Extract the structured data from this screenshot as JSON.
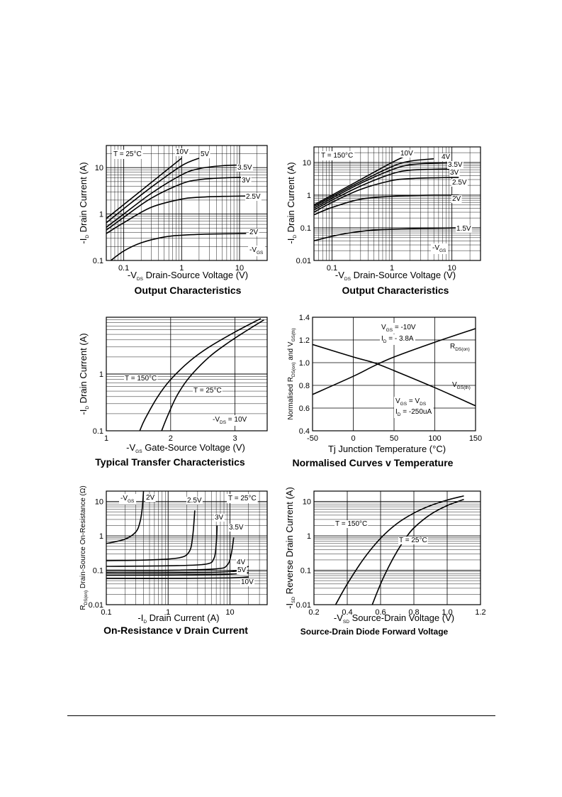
{
  "chart_data": [
    {
      "id": "c1",
      "type": "line",
      "title": "Output Characteristics",
      "xlabel": "Drain-Source Voltage (V)",
      "xlabel_prefix": {
        "main": "-V",
        "sub": "DS"
      },
      "ylabel": "Drain Current (A)",
      "ylabel_prefix": {
        "main": "-I",
        "sub": "D"
      },
      "x_scale": "log",
      "y_scale": "log",
      "xlim": [
        0.05,
        30
      ],
      "ylim": [
        0.1,
        30
      ],
      "x_ticks": [
        {
          "v": 0.1,
          "t": "0.1"
        },
        {
          "v": 1,
          "t": "1"
        },
        {
          "v": 10,
          "t": "10"
        }
      ],
      "y_ticks": [
        {
          "v": 0.1,
          "t": "0.1"
        },
        {
          "v": 1,
          "t": "1"
        },
        {
          "v": 10,
          "t": "10"
        }
      ],
      "condition": "T = 25°C",
      "param_label": {
        "main": "-V",
        "sub": "GS"
      },
      "series": [
        {
          "name": "10V",
          "x": [
            0.05,
            0.1,
            0.3,
            1.0
          ],
          "y": [
            0.8,
            1.6,
            4.8,
            16
          ]
        },
        {
          "name": "5V",
          "x": [
            0.05,
            0.1,
            0.3,
            1.0,
            2.0
          ],
          "y": [
            0.65,
            1.3,
            3.8,
            11,
            16
          ]
        },
        {
          "name": "3.5V",
          "x": [
            0.05,
            0.1,
            0.3,
            1.0,
            2.0,
            5.0,
            13
          ],
          "y": [
            0.52,
            1.0,
            2.8,
            7.0,
            9.5,
            11,
            11.5
          ]
        },
        {
          "name": "3V",
          "x": [
            0.05,
            0.1,
            0.3,
            1.0,
            2.0,
            5.0,
            13
          ],
          "y": [
            0.45,
            0.85,
            2.2,
            4.5,
            5.5,
            6.0,
            6.2
          ]
        },
        {
          "name": "2.5V",
          "x": [
            0.05,
            0.1,
            0.3,
            1.0,
            2.0,
            5.0,
            13
          ],
          "y": [
            0.38,
            0.65,
            1.4,
            2.1,
            2.3,
            2.4,
            2.45
          ]
        },
        {
          "name": "2V",
          "x": [
            0.06,
            0.1,
            0.2,
            0.5,
            1.0,
            3.0,
            13
          ],
          "y": [
            0.1,
            0.16,
            0.24,
            0.32,
            0.35,
            0.37,
            0.38
          ]
        }
      ]
    },
    {
      "id": "c2",
      "type": "line",
      "title": "Output Characteristics",
      "xlabel": "Drain-Source Voltage (V)",
      "xlabel_prefix": {
        "main": "-V",
        "sub": "DS"
      },
      "ylabel": "Drain Current (A)",
      "ylabel_prefix": {
        "main": "-I",
        "sub": "D"
      },
      "x_scale": "log",
      "y_scale": "log",
      "xlim": [
        0.05,
        30
      ],
      "ylim": [
        0.01,
        30
      ],
      "x_ticks": [
        {
          "v": 0.1,
          "t": "0.1"
        },
        {
          "v": 1,
          "t": "1"
        },
        {
          "v": 10,
          "t": "10"
        }
      ],
      "y_ticks": [
        {
          "v": 0.01,
          "t": "0.01"
        },
        {
          "v": 0.1,
          "t": "0.1"
        },
        {
          "v": 1,
          "t": "1"
        },
        {
          "v": 10,
          "t": "10"
        }
      ],
      "condition": "T = 150°C",
      "param_label": {
        "main": "-V",
        "sub": "GS"
      },
      "series": [
        {
          "name": "10V",
          "x": [
            0.05,
            0.1,
            0.3,
            1.0,
            1.7
          ],
          "y": [
            0.5,
            1.0,
            3.0,
            10,
            16
          ]
        },
        {
          "name": "4V",
          "x": [
            0.05,
            0.1,
            0.3,
            1.0,
            2.0,
            5.0
          ],
          "y": [
            0.45,
            0.9,
            2.6,
            7.5,
            11,
            13
          ]
        },
        {
          "name": "3.5V",
          "x": [
            0.05,
            0.1,
            0.3,
            1.0,
            2.0,
            5.0,
            13
          ],
          "y": [
            0.4,
            0.8,
            2.3,
            6.0,
            8.5,
            9.5,
            10
          ]
        },
        {
          "name": "3V",
          "x": [
            0.05,
            0.1,
            0.3,
            1.0,
            2.0,
            5.0,
            13
          ],
          "y": [
            0.35,
            0.7,
            1.9,
            4.5,
            5.8,
            6.2,
            6.4
          ]
        },
        {
          "name": "2.5V",
          "x": [
            0.05,
            0.1,
            0.3,
            1.0,
            2.0,
            5.0,
            13
          ],
          "y": [
            0.3,
            0.6,
            1.5,
            2.8,
            3.2,
            3.4,
            3.5
          ]
        },
        {
          "name": "2V",
          "x": [
            0.05,
            0.1,
            0.3,
            1.0,
            2.0,
            5.0,
            13
          ],
          "y": [
            0.25,
            0.42,
            0.75,
            0.92,
            0.97,
            1.0,
            1.0
          ]
        },
        {
          "name": "1.5V",
          "x": [
            0.05,
            0.1,
            0.2,
            0.5,
            1.0,
            3.0,
            13
          ],
          "y": [
            0.04,
            0.055,
            0.07,
            0.085,
            0.09,
            0.095,
            0.1
          ]
        }
      ]
    },
    {
      "id": "c3",
      "type": "line",
      "title": "Typical Transfer Characteristics",
      "xlabel": "Gate-Source Voltage (V)",
      "xlabel_prefix": {
        "main": "-V",
        "sub": "GS"
      },
      "ylabel": "Drain Current (A)",
      "ylabel_prefix": {
        "main": "-I",
        "sub": "D"
      },
      "x_scale": "linear",
      "y_scale": "log",
      "xlim": [
        1,
        3.5
      ],
      "ylim": [
        0.1,
        10
      ],
      "x_ticks": [
        {
          "v": 1,
          "t": "1"
        },
        {
          "v": 2,
          "t": "2"
        },
        {
          "v": 3,
          "t": "3"
        }
      ],
      "y_ticks": [
        {
          "v": 0.1,
          "t": "0.1"
        },
        {
          "v": 1,
          "t": "1"
        }
      ],
      "condition_right": {
        "main": "-V",
        "sub": "DS",
        "rest": " = 10V"
      },
      "series": [
        {
          "name": "T = 150°C",
          "x": [
            1.52,
            1.6,
            1.8,
            2.0,
            2.3,
            2.6,
            3.0,
            3.4
          ],
          "y": [
            0.1,
            0.16,
            0.4,
            0.8,
            1.7,
            3.0,
            5.5,
            9.5
          ]
        },
        {
          "name": "T = 25°C",
          "x": [
            1.86,
            1.95,
            2.1,
            2.3,
            2.6,
            2.9,
            3.2,
            3.45
          ],
          "y": [
            0.1,
            0.18,
            0.42,
            0.9,
            2.0,
            3.6,
            6.0,
            9.0
          ]
        }
      ]
    },
    {
      "id": "c4",
      "type": "line",
      "title": "Normalised Curves v Temperature",
      "xlabel": "Junction Temperature (°C)",
      "xlabel_prefix": {
        "main": "Tj",
        "sub": ""
      },
      "ylabel_parts": {
        "a": "Normalised R",
        "asub": "DS(on)",
        "b": " and V",
        "bsub": "GS(th)"
      },
      "x_scale": "linear",
      "y_scale": "linear",
      "xlim": [
        -50,
        150
      ],
      "ylim": [
        0.4,
        1.4
      ],
      "x_ticks": [
        {
          "v": -50,
          "t": "-50"
        },
        {
          "v": 0,
          "t": "0"
        },
        {
          "v": 50,
          "t": "50"
        },
        {
          "v": 100,
          "t": "100"
        },
        {
          "v": 150,
          "t": "150"
        }
      ],
      "y_ticks": [
        {
          "v": 0.4,
          "t": "0.4"
        },
        {
          "v": 0.6,
          "t": "0.6"
        },
        {
          "v": 0.8,
          "t": "0.8"
        },
        {
          "v": 1.0,
          "t": "1.0"
        },
        {
          "v": 1.2,
          "t": "1.2"
        },
        {
          "v": 1.4,
          "t": "1.4"
        }
      ],
      "cond_top_1": {
        "main": "V",
        "sub": "GS",
        "rest": " = -10V"
      },
      "cond_top_2": {
        "main": "I",
        "sub": "D",
        "rest": " = - 3.8A"
      },
      "cond_bot_1": {
        "main": "V",
        "sub": "GS",
        "rest": " = V",
        "sub2": "DS"
      },
      "cond_bot_2": {
        "main": "I",
        "sub": "D",
        "rest": " = -250uA"
      },
      "series": [
        {
          "name": "R",
          "name_sub": "DS(on)",
          "x": [
            -50,
            0,
            25,
            50,
            100,
            150
          ],
          "y": [
            0.72,
            0.88,
            0.97,
            1.05,
            1.18,
            1.3
          ]
        },
        {
          "name": "V",
          "name_sub": "GS(th)",
          "x": [
            -50,
            0,
            25,
            50,
            100,
            150
          ],
          "y": [
            1.16,
            1.05,
            1.0,
            0.93,
            0.78,
            0.62
          ]
        }
      ]
    },
    {
      "id": "c5",
      "type": "line",
      "title": "On-Resistance v Drain Current",
      "xlabel": "Drain Current (A)",
      "xlabel_prefix": {
        "main": "-I",
        "sub": "D"
      },
      "ylabel_parts": {
        "a": "R",
        "asub": "DS(on)",
        "b": " Drain-Source On-Resistance (Ω)",
        "bsub": ""
      },
      "x_scale": "log",
      "y_scale": "log",
      "xlim": [
        0.1,
        40
      ],
      "ylim": [
        0.01,
        20
      ],
      "x_ticks": [
        {
          "v": 0.1,
          "t": "0.1"
        },
        {
          "v": 1,
          "t": "1"
        },
        {
          "v": 10,
          "t": "10"
        }
      ],
      "y_ticks": [
        {
          "v": 0.01,
          "t": "0.01"
        },
        {
          "v": 0.1,
          "t": "0.1"
        },
        {
          "v": 1,
          "t": "1"
        },
        {
          "v": 10,
          "t": "10"
        }
      ],
      "condition": "T = 25°C",
      "param_label": {
        "main": "-V",
        "sub": "GS"
      },
      "series": [
        {
          "name": "2V",
          "x": [
            0.1,
            0.2,
            0.3,
            0.35,
            0.38,
            0.4
          ],
          "y": [
            0.6,
            0.8,
            1.3,
            2.5,
            6.0,
            20
          ]
        },
        {
          "name": "2.5V",
          "x": [
            0.1,
            0.5,
            1.5,
            2.2,
            2.5,
            2.7
          ],
          "y": [
            0.19,
            0.2,
            0.23,
            0.35,
            1.0,
            5.5
          ]
        },
        {
          "name": "3V",
          "x": [
            0.1,
            1.0,
            4.0,
            5.5,
            6.0,
            6.2
          ],
          "y": [
            0.13,
            0.135,
            0.15,
            0.22,
            0.6,
            2.0
          ]
        },
        {
          "name": "3.5V",
          "x": [
            0.1,
            1.0,
            6.0,
            9.0,
            10.5,
            11.5
          ],
          "y": [
            0.1,
            0.1,
            0.11,
            0.14,
            0.3,
            0.9
          ]
        },
        {
          "name": "4V",
          "x": [
            0.1,
            1.0,
            10,
            20
          ],
          "y": [
            0.085,
            0.085,
            0.092,
            0.13
          ]
        },
        {
          "name": "5V",
          "x": [
            0.1,
            1.0,
            10,
            20
          ],
          "y": [
            0.072,
            0.073,
            0.077,
            0.085
          ]
        },
        {
          "name": "10V",
          "x": [
            0.1,
            1.0,
            10,
            20
          ],
          "y": [
            0.058,
            0.058,
            0.06,
            0.064
          ]
        }
      ]
    },
    {
      "id": "c6",
      "type": "line",
      "title": "Source-Drain Diode Forward Voltage",
      "xlabel": "Source-Drain Voltage (V)",
      "xlabel_prefix": {
        "main": "-V",
        "sub": "SD"
      },
      "ylabel": "Reverse Drain Current (A)",
      "ylabel_prefix": {
        "main": "-I",
        "sub": "SD"
      },
      "x_scale": "linear",
      "y_scale": "log",
      "xlim": [
        0.2,
        1.2
      ],
      "ylim": [
        0.01,
        20
      ],
      "x_ticks": [
        {
          "v": 0.2,
          "t": "0.2"
        },
        {
          "v": 0.4,
          "t": "0.4"
        },
        {
          "v": 0.6,
          "t": "0.6"
        },
        {
          "v": 0.8,
          "t": "0.8"
        },
        {
          "v": 1.0,
          "t": "1.0"
        },
        {
          "v": 1.2,
          "t": "1.2"
        }
      ],
      "y_ticks": [
        {
          "v": 0.01,
          "t": "0.01"
        },
        {
          "v": 0.1,
          "t": "0.1"
        },
        {
          "v": 1,
          "t": "1"
        },
        {
          "v": 10,
          "t": "10"
        }
      ],
      "series": [
        {
          "name": "T = 150°C",
          "x": [
            0.33,
            0.4,
            0.5,
            0.6,
            0.7,
            0.8,
            0.9,
            1.0,
            1.1
          ],
          "y": [
            0.01,
            0.04,
            0.22,
            0.85,
            2.3,
            4.6,
            7.6,
            11,
            14.5
          ]
        },
        {
          "name": "T = 25°C",
          "x": [
            0.55,
            0.6,
            0.65,
            0.7,
            0.75,
            0.8,
            0.9,
            1.0,
            1.1
          ],
          "y": [
            0.01,
            0.04,
            0.13,
            0.36,
            0.85,
            1.7,
            4.2,
            7.6,
            11.5
          ]
        }
      ]
    }
  ]
}
